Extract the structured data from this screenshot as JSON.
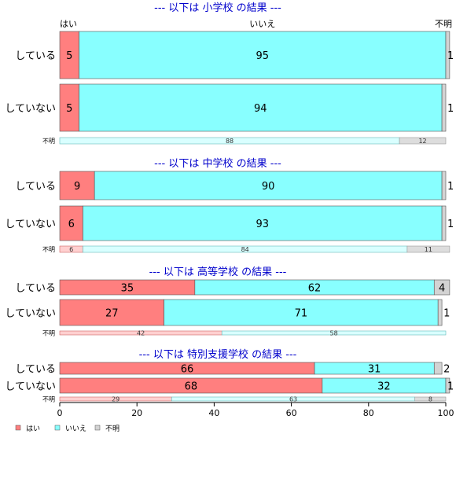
{
  "chart_data": {
    "type": "bar",
    "orientation": "horizontal",
    "stacked": true,
    "percent": true,
    "categories": [
      "はい",
      "いいえ",
      "不明"
    ],
    "colors": {
      "はい": "#ff7f7f",
      "いいえ": "#88ffff",
      "不明": "#d3d3d3"
    },
    "xlim": [
      0,
      100
    ],
    "xticks": [
      "0",
      "20",
      "40",
      "60",
      "80",
      "100"
    ],
    "legend": [
      "はい",
      "いいえ",
      "不明"
    ],
    "legend_position": "bottom-left",
    "panels": [
      {
        "title": "--- 以下は 小学校 の結果 ---",
        "rows": [
          {
            "label": "している",
            "values": [
              5,
              95,
              1
            ]
          },
          {
            "label": "していない",
            "values": [
              5,
              94,
              1
            ]
          },
          {
            "label": "不明",
            "values": [
              0,
              88,
              12
            ],
            "small": true
          }
        ]
      },
      {
        "title": "--- 以下は 中学校 の結果 ---",
        "rows": [
          {
            "label": "している",
            "values": [
              9,
              90,
              1
            ]
          },
          {
            "label": "していない",
            "values": [
              6,
              93,
              1
            ]
          },
          {
            "label": "不明",
            "values": [
              6,
              84,
              11
            ],
            "small": true
          }
        ]
      },
      {
        "title": "--- 以下は 高等学校 の結果 ---",
        "rows": [
          {
            "label": "している",
            "values": [
              35,
              62,
              4
            ]
          },
          {
            "label": "していない",
            "values": [
              27,
              71,
              1
            ]
          },
          {
            "label": "不明",
            "values": [
              42,
              58,
              0
            ],
            "small": true
          }
        ]
      },
      {
        "title": "--- 以下は 特別支援学校 の結果 ---",
        "rows": [
          {
            "label": "している",
            "values": [
              66,
              31,
              2
            ]
          },
          {
            "label": "していない",
            "values": [
              68,
              32,
              1
            ]
          },
          {
            "label": "不明",
            "values": [
              29,
              63,
              8
            ],
            "small": true
          }
        ]
      }
    ]
  }
}
